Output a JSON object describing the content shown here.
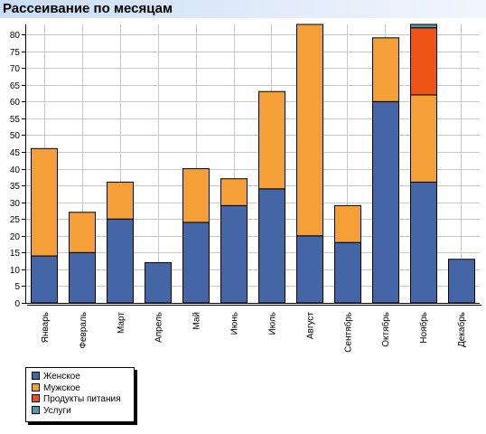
{
  "title": "Рассеивание по месяцам",
  "chart_data": {
    "type": "bar",
    "stacked": true,
    "categories": [
      "Январь",
      "Февраль",
      "Март",
      "Апрель",
      "Май",
      "Июнь",
      "Июль",
      "Август",
      "Сентябрь",
      "Октябрь",
      "Ноябрь",
      "Декабрь"
    ],
    "series": [
      {
        "name": "Женское",
        "color": "#4466a6",
        "values": [
          14,
          15,
          25,
          12,
          24,
          29,
          34,
          20,
          18,
          60,
          36,
          13
        ]
      },
      {
        "name": "Мужское",
        "color": "#f49f37",
        "values": [
          32,
          12,
          11,
          0,
          16,
          8,
          29,
          63,
          11,
          19,
          26,
          0
        ]
      },
      {
        "name": "Продукты питания",
        "color": "#f05316",
        "values": [
          0,
          0,
          0,
          0,
          0,
          0,
          0,
          0,
          0,
          0,
          20,
          0
        ]
      },
      {
        "name": "Услуги",
        "color": "#4c9aaa",
        "values": [
          0,
          0,
          0,
          0,
          0,
          0,
          0,
          0,
          0,
          0,
          1,
          0
        ]
      }
    ],
    "ylim": [
      0,
      83
    ],
    "yticks": [
      0,
      5,
      10,
      15,
      20,
      25,
      30,
      35,
      40,
      45,
      50,
      55,
      60,
      65,
      70,
      75,
      80
    ],
    "grid": true,
    "legend_position": "bottom-left",
    "xlabel": "",
    "ylabel": ""
  }
}
